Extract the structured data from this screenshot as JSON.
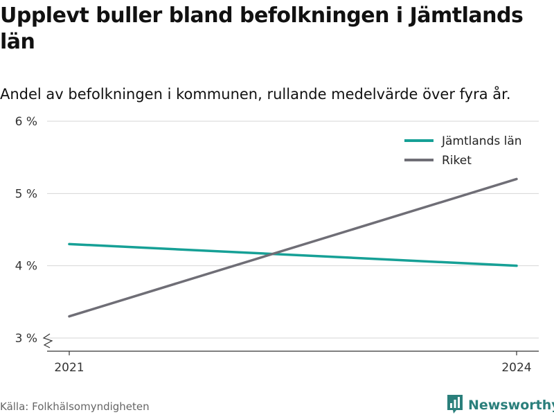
{
  "chart_data": {
    "type": "line",
    "title": "Upplevt buller bland befolkningen i Jämtlands län",
    "subtitle": "Andel av befolkningen i kommunen, rullande medelvärde över fyra år.",
    "x": [
      "2021",
      "2024"
    ],
    "xlabel": "",
    "ylabel": "",
    "ylim": [
      3,
      6
    ],
    "y_ticks": [
      {
        "value": 3,
        "label": "3 %"
      },
      {
        "value": 4,
        "label": "4 %"
      },
      {
        "value": 5,
        "label": "5 %"
      },
      {
        "value": 6,
        "label": "6 %"
      }
    ],
    "grid": true,
    "axis_break": true,
    "legend_position": "top-right",
    "series": [
      {
        "name": "Jämtlands län",
        "color": "#16a096",
        "values": [
          4.3,
          4.0
        ]
      },
      {
        "name": "Riket",
        "color": "#6f6e76",
        "values": [
          3.3,
          5.2
        ]
      }
    ]
  },
  "footer": {
    "source": "Källa: Folkhälsomyndigheten",
    "brand": "Newsworthy",
    "brand_icon": "bar-chart-logo-icon",
    "brand_color": "#2a7f7b"
  }
}
